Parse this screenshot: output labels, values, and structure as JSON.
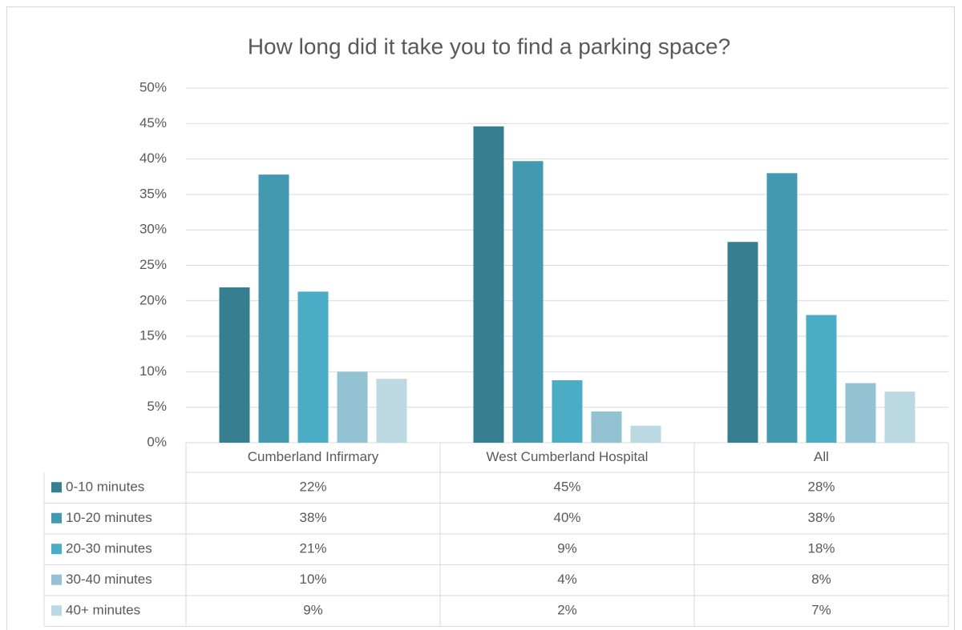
{
  "chart_data": {
    "type": "bar",
    "title": "How long did it take you to find a parking space?",
    "categories": [
      "Cumberland Infirmary",
      "West Cumberland Hospital",
      "All"
    ],
    "series": [
      {
        "name": "0-10 minutes",
        "color": "#357f91",
        "values": [
          21.9,
          44.6,
          28.3
        ],
        "value_labels": [
          "22%",
          "45%",
          "28%"
        ]
      },
      {
        "name": "10-20 minutes",
        "color": "#4299b0",
        "values": [
          37.8,
          39.7,
          38.0
        ],
        "value_labels": [
          "38%",
          "40%",
          "38%"
        ]
      },
      {
        "name": "20-30 minutes",
        "color": "#4badc5",
        "values": [
          21.3,
          8.8,
          18.0
        ],
        "value_labels": [
          "21%",
          "9%",
          "18%"
        ]
      },
      {
        "name": "30-40 minutes",
        "color": "#93c3d3",
        "values": [
          10.0,
          4.4,
          8.4
        ],
        "value_labels": [
          "10%",
          "4%",
          "8%"
        ]
      },
      {
        "name": "40+ minutes",
        "color": "#bad9e2",
        "values": [
          9.0,
          2.4,
          7.2
        ],
        "value_labels": [
          "9%",
          "2%",
          "7%"
        ]
      }
    ],
    "ylim": [
      0,
      50
    ],
    "yticks": [
      {
        "value": 0,
        "label": "0%"
      },
      {
        "value": 5,
        "label": "5%"
      },
      {
        "value": 10,
        "label": "10%"
      },
      {
        "value": 15,
        "label": "15%"
      },
      {
        "value": 20,
        "label": "20%"
      },
      {
        "value": 25,
        "label": "25%"
      },
      {
        "value": 30,
        "label": "30%"
      },
      {
        "value": 35,
        "label": "35%"
      },
      {
        "value": 40,
        "label": "40%"
      },
      {
        "value": 45,
        "label": "45%"
      },
      {
        "value": 50,
        "label": "50%"
      }
    ],
    "grid": true
  }
}
